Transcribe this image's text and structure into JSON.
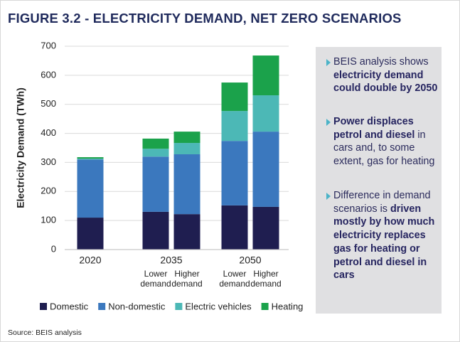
{
  "title": "FIGURE 3.2 - ELECTRICITY DEMAND, NET ZERO SCENARIOS",
  "chart_data": {
    "type": "bar",
    "stacked": true,
    "ylabel": "Electricity Demand (TWh)",
    "group_labels": [
      "2020",
      "2035",
      "2050"
    ],
    "categories": [
      null,
      "Lower demand",
      "Higher demand",
      "Lower demand",
      "Higher demand"
    ],
    "series": [
      {
        "name": "Domestic",
        "color": "#1f1e50",
        "values": [
          110,
          130,
          122,
          152,
          147
        ]
      },
      {
        "name": "Non-domestic",
        "color": "#3b78be",
        "values": [
          200,
          190,
          206,
          222,
          259
        ]
      },
      {
        "name": "Electric vehicles",
        "color": "#4cb8b6",
        "values": [
          3,
          27,
          39,
          103,
          125
        ]
      },
      {
        "name": "Heating",
        "color": "#1ba24b",
        "values": [
          5,
          35,
          39,
          98,
          137
        ]
      }
    ],
    "ylim": [
      0,
      700
    ],
    "yticks": [
      0,
      100,
      200,
      300,
      400,
      500,
      600,
      700
    ],
    "grid": true
  },
  "sidebar": {
    "bullets": [
      [
        {
          "text": "BEIS analysis shows ",
          "bold": false
        },
        {
          "text": "electricity demand could double by 2050",
          "bold": true
        }
      ],
      [
        {
          "text": "Power displaces petrol and diesel",
          "bold": true
        },
        {
          "text": " in cars and, to some extent, gas for heating",
          "bold": false
        }
      ],
      [
        {
          "text": "Difference in demand scenarios is ",
          "bold": false
        },
        {
          "text": "driven mostly by how much electricity replaces gas for heating or petrol and diesel in cars",
          "bold": true
        }
      ]
    ]
  },
  "source": "Source: BEIS analysis"
}
